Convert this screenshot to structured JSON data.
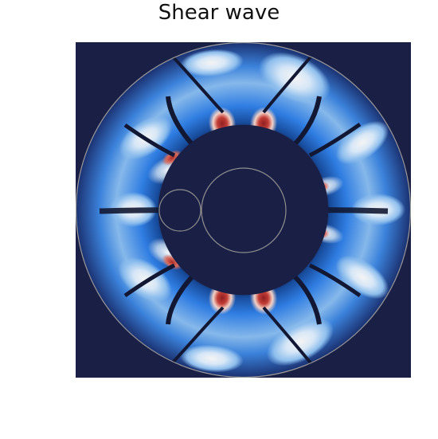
{
  "title": "Shear wave",
  "colors": {
    "background": "#1a1f45",
    "outline": "#9a9a9a",
    "positive_peak": "#8f1f22",
    "mid_blue": "#2b6fd0",
    "light_blue": "#a8c8eb",
    "white": "#f1f1f1"
  }
}
